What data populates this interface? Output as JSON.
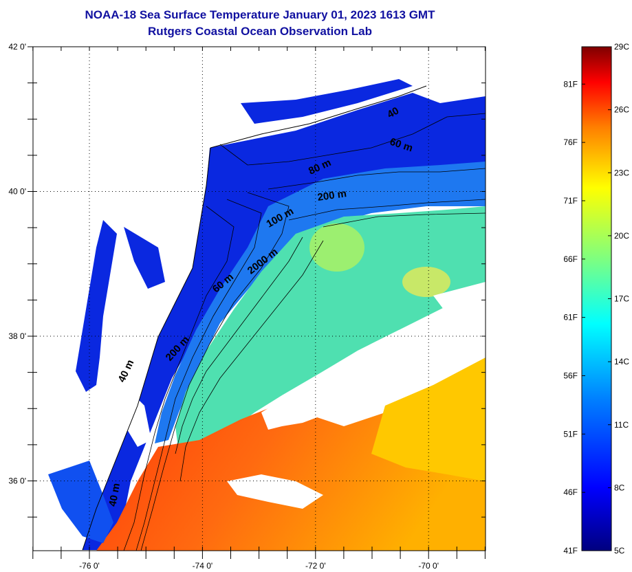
{
  "title": "NOAA-18 Sea Surface Temperature January 01, 2023 1613 GMT",
  "subtitle": "Rutgers Coastal Ocean Observation Lab",
  "map": {
    "lat_labels": [
      {
        "lat": 42,
        "label": "42 0'"
      },
      {
        "lat": 40,
        "label": "40 0'"
      },
      {
        "lat": 38,
        "label": "38 0'"
      },
      {
        "lat": 36,
        "label": "36 0'"
      }
    ],
    "lon_labels": [
      {
        "lon": -76,
        "label": "-76 0'"
      },
      {
        "lon": -74,
        "label": "-74 0'"
      },
      {
        "lon": -72,
        "label": "-72 0'"
      },
      {
        "lon": -70,
        "label": "-70 0'"
      }
    ],
    "contour_labels": [
      {
        "text": "40 m",
        "lon": -75.3,
        "lat": 37.5,
        "angle": -65
      },
      {
        "text": "40 m",
        "lon": -75.5,
        "lat": 35.8,
        "angle": -80
      },
      {
        "text": "60 m",
        "lon": -73.6,
        "lat": 38.7,
        "angle": -40
      },
      {
        "text": "200 m",
        "lon": -74.4,
        "lat": 37.8,
        "angle": -48
      },
      {
        "text": "2000 m",
        "lon": -72.9,
        "lat": 39.0,
        "angle": -38
      },
      {
        "text": "100 m",
        "lon": -72.6,
        "lat": 39.6,
        "angle": -30
      },
      {
        "text": "80 m",
        "lon": -71.9,
        "lat": 40.3,
        "angle": -25
      },
      {
        "text": "200 m",
        "lon": -71.7,
        "lat": 39.9,
        "angle": -8
      },
      {
        "text": "60 m",
        "lon": -70.5,
        "lat": 40.6,
        "angle": 18
      },
      {
        "text": "40",
        "lon": -70.6,
        "lat": 41.05,
        "angle": -30
      }
    ]
  },
  "colorbar": {
    "fahrenheit": [
      "81F",
      "76F",
      "71F",
      "66F",
      "61F",
      "56F",
      "51F",
      "46F",
      "41F"
    ],
    "celsius": [
      "29C",
      "26C",
      "23C",
      "20C",
      "17C",
      "14C",
      "11C",
      "8C",
      "5C"
    ],
    "celsius_values": [
      29,
      26,
      23,
      20,
      17,
      14,
      11,
      8,
      5
    ],
    "fahrenheit_values": [
      81,
      76,
      71,
      66,
      61,
      56,
      51,
      46,
      41
    ],
    "range_c": [
      5,
      29
    ],
    "colors": [
      "#00007f",
      "#0000ff",
      "#007fff",
      "#00ffff",
      "#7fff7f",
      "#ffff00",
      "#ff7f00",
      "#ff0000",
      "#7f0000"
    ]
  }
}
